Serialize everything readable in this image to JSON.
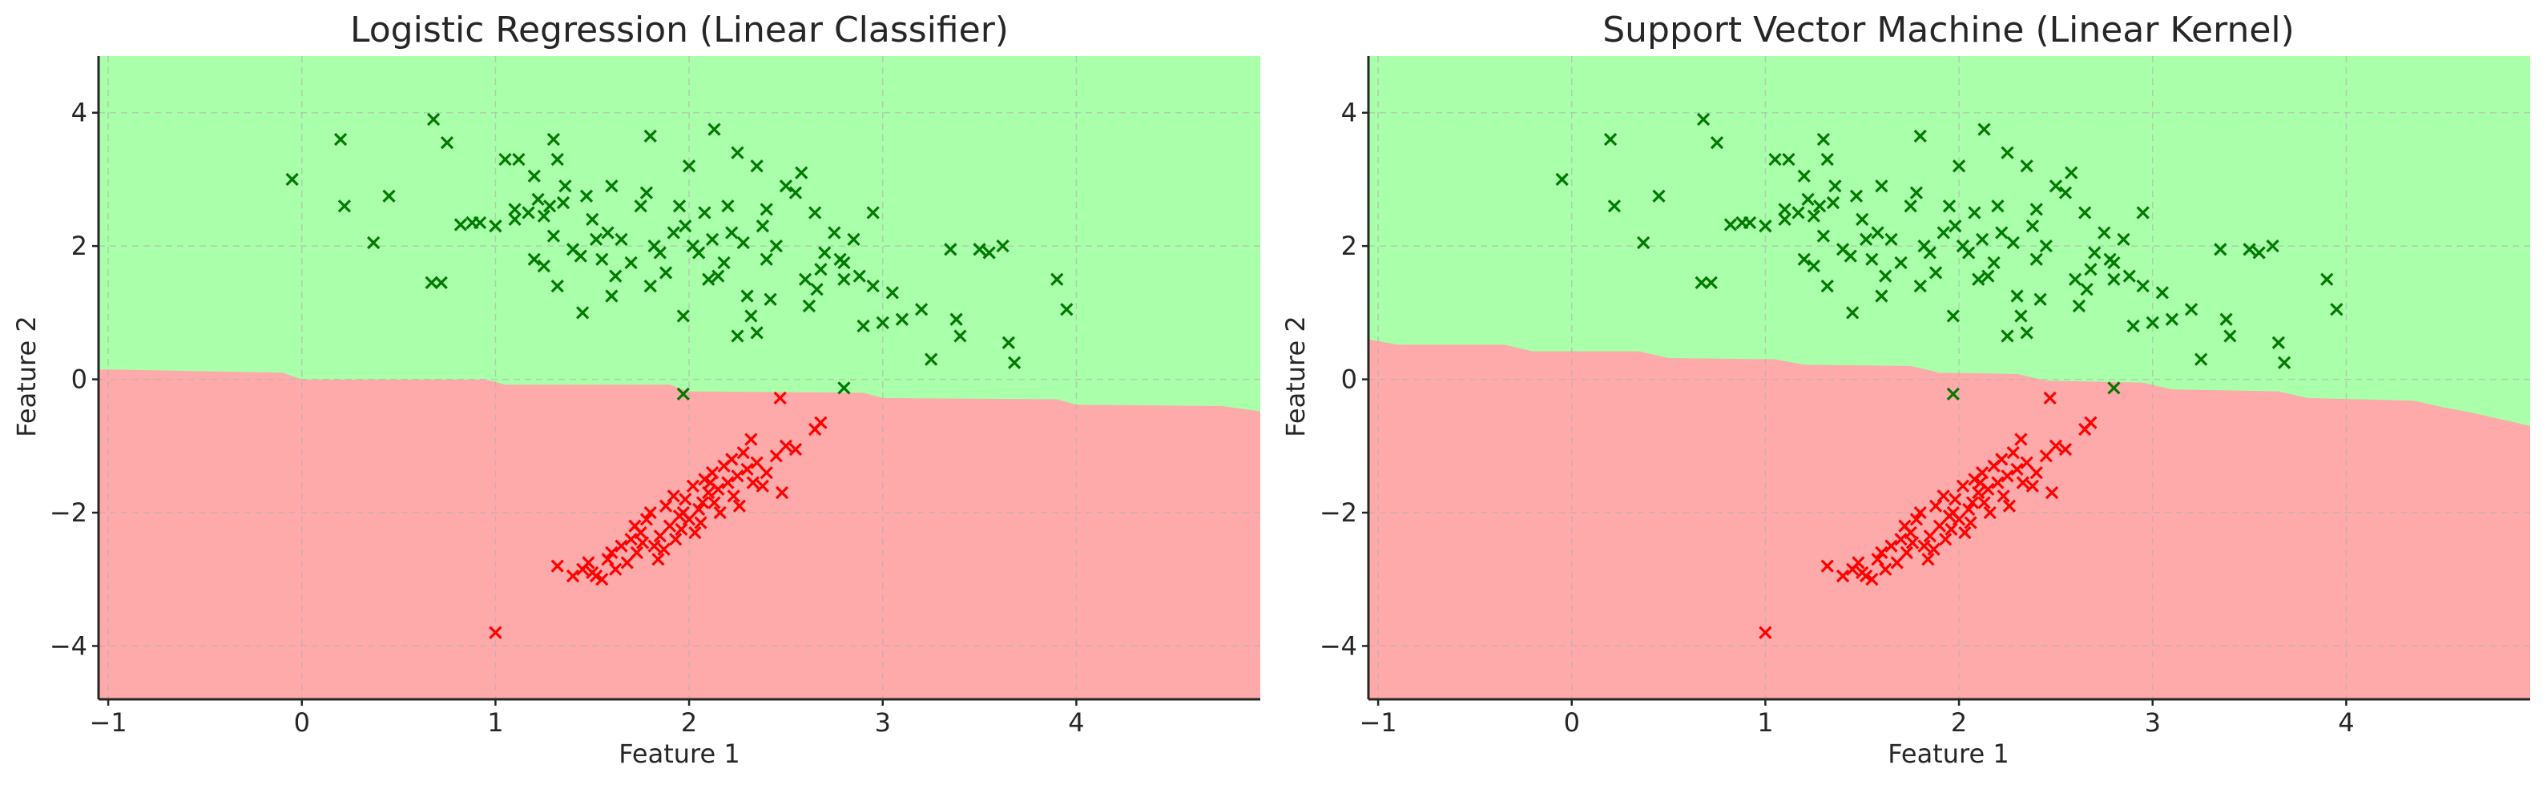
{
  "chart_data": [
    {
      "type": "scatter",
      "title": "Logistic Regression (Linear Classifier)",
      "xlabel": "Feature 1",
      "ylabel": "Feature 2",
      "xlim": [
        -1.05,
        4.95
      ],
      "ylim": [
        -4.8,
        4.85
      ],
      "xticks": [
        -1,
        0,
        1,
        2,
        3,
        4
      ],
      "xtick_labels": [
        "−1",
        "0",
        "1",
        "2",
        "3",
        "4"
      ],
      "yticks": [
        -4,
        -2,
        0,
        2,
        4
      ],
      "ytick_labels": [
        "−4",
        "−2",
        "0",
        "2",
        "4"
      ],
      "grid": true,
      "marker": "x",
      "region_colors": {
        "class_1": "#aaffaa",
        "class_0": "#ffaaaa"
      },
      "series_colors": {
        "class_1": "#007a00",
        "class_0": "#ff0000"
      },
      "decision_boundary": [
        [
          -1.05,
          0.15
        ],
        [
          -0.1,
          0.1
        ],
        [
          0.0,
          0.0
        ],
        [
          0.95,
          0.0
        ],
        [
          1.05,
          -0.08
        ],
        [
          1.9,
          -0.08
        ],
        [
          2.0,
          -0.18
        ],
        [
          2.9,
          -0.2
        ],
        [
          3.0,
          -0.28
        ],
        [
          3.9,
          -0.3
        ],
        [
          4.0,
          -0.38
        ],
        [
          4.75,
          -0.4
        ],
        [
          4.95,
          -0.48
        ]
      ]
    },
    {
      "type": "scatter",
      "title": "Support Vector Machine (Linear Kernel)",
      "xlabel": "Feature 1",
      "ylabel": "Feature 2",
      "xlim": [
        -1.05,
        4.95
      ],
      "ylim": [
        -4.8,
        4.85
      ],
      "xticks": [
        -1,
        0,
        1,
        2,
        3,
        4
      ],
      "xtick_labels": [
        "−1",
        "0",
        "1",
        "2",
        "3",
        "4"
      ],
      "yticks": [
        -4,
        -2,
        0,
        2,
        4
      ],
      "ytick_labels": [
        "−4",
        "−2",
        "0",
        "2",
        "4"
      ],
      "grid": true,
      "marker": "x",
      "region_colors": {
        "class_1": "#aaffaa",
        "class_0": "#ffaaaa"
      },
      "series_colors": {
        "class_1": "#007a00",
        "class_0": "#ff0000"
      },
      "decision_boundary": [
        [
          -1.05,
          0.6
        ],
        [
          -0.9,
          0.52
        ],
        [
          -0.35,
          0.52
        ],
        [
          -0.2,
          0.42
        ],
        [
          0.35,
          0.42
        ],
        [
          0.5,
          0.32
        ],
        [
          1.05,
          0.3
        ],
        [
          1.2,
          0.22
        ],
        [
          1.75,
          0.2
        ],
        [
          1.9,
          0.1
        ],
        [
          2.3,
          0.08
        ],
        [
          2.45,
          -0.02
        ],
        [
          2.95,
          -0.05
        ],
        [
          3.1,
          -0.15
        ],
        [
          3.65,
          -0.18
        ],
        [
          3.8,
          -0.28
        ],
        [
          4.35,
          -0.32
        ],
        [
          4.5,
          -0.42
        ],
        [
          4.65,
          -0.5
        ],
        [
          4.95,
          -0.7
        ]
      ]
    }
  ],
  "points": {
    "green": [
      [
        -0.05,
        3.0
      ],
      [
        0.2,
        3.6
      ],
      [
        0.22,
        2.6
      ],
      [
        0.37,
        2.05
      ],
      [
        0.45,
        2.75
      ],
      [
        0.68,
        3.9
      ],
      [
        0.75,
        3.55
      ],
      [
        0.67,
        1.45
      ],
      [
        0.72,
        1.45
      ],
      [
        0.82,
        2.32
      ],
      [
        0.88,
        2.35
      ],
      [
        1.0,
        2.3
      ],
      [
        1.05,
        3.3
      ],
      [
        1.1,
        2.4
      ],
      [
        1.12,
        3.3
      ],
      [
        1.17,
        2.5
      ],
      [
        1.2,
        3.05
      ],
      [
        1.22,
        2.7
      ],
      [
        1.25,
        2.45
      ],
      [
        1.28,
        2.6
      ],
      [
        1.3,
        3.6
      ],
      [
        1.32,
        3.3
      ],
      [
        1.35,
        2.65
      ],
      [
        1.2,
        1.8
      ],
      [
        1.25,
        1.7
      ],
      [
        1.3,
        2.15
      ],
      [
        1.32,
        1.4
      ],
      [
        1.4,
        1.95
      ],
      [
        1.45,
        1.0
      ],
      [
        1.47,
        2.75
      ],
      [
        1.52,
        2.1
      ],
      [
        1.55,
        1.8
      ],
      [
        1.58,
        2.2
      ],
      [
        1.6,
        1.25
      ],
      [
        1.62,
        1.55
      ],
      [
        1.7,
        1.75
      ],
      [
        1.75,
        2.6
      ],
      [
        1.78,
        2.8
      ],
      [
        1.8,
        1.4
      ],
      [
        1.82,
        2.0
      ],
      [
        1.85,
        1.9
      ],
      [
        1.88,
        1.6
      ],
      [
        1.8,
        3.65
      ],
      [
        1.95,
        2.6
      ],
      [
        1.98,
        2.3
      ],
      [
        2.0,
        3.2
      ],
      [
        2.02,
        2.0
      ],
      [
        2.05,
        1.9
      ],
      [
        2.08,
        2.5
      ],
      [
        1.97,
        0.95
      ],
      [
        2.1,
        1.5
      ],
      [
        2.12,
        2.1
      ],
      [
        2.13,
        3.75
      ],
      [
        2.15,
        1.55
      ],
      [
        2.18,
        1.75
      ],
      [
        2.2,
        2.6
      ],
      [
        2.22,
        2.2
      ],
      [
        2.25,
        3.4
      ],
      [
        2.25,
        0.65
      ],
      [
        2.3,
        1.25
      ],
      [
        2.32,
        0.95
      ],
      [
        2.35,
        3.2
      ],
      [
        2.35,
        0.7
      ],
      [
        2.38,
        2.3
      ],
      [
        2.4,
        1.8
      ],
      [
        2.45,
        2.0
      ],
      [
        2.5,
        2.9
      ],
      [
        2.55,
        2.8
      ],
      [
        2.58,
        3.1
      ],
      [
        2.6,
        1.5
      ],
      [
        2.62,
        1.1
      ],
      [
        2.65,
        2.5
      ],
      [
        2.68,
        1.65
      ],
      [
        2.7,
        1.9
      ],
      [
        2.75,
        2.2
      ],
      [
        2.78,
        1.8
      ],
      [
        2.8,
        1.5
      ],
      [
        2.85,
        2.1
      ],
      [
        2.88,
        1.55
      ],
      [
        2.9,
        0.8
      ],
      [
        2.95,
        1.4
      ],
      [
        2.95,
        2.5
      ],
      [
        3.0,
        0.85
      ],
      [
        3.05,
        1.3
      ],
      [
        3.1,
        0.9
      ],
      [
        3.2,
        1.05
      ],
      [
        3.25,
        0.3
      ],
      [
        3.35,
        1.95
      ],
      [
        3.4,
        0.65
      ],
      [
        3.5,
        1.95
      ],
      [
        3.55,
        1.9
      ],
      [
        3.62,
        2.0
      ],
      [
        3.65,
        0.55
      ],
      [
        3.68,
        0.25
      ],
      [
        3.9,
        1.5
      ],
      [
        3.95,
        1.05
      ],
      [
        0.92,
        2.35
      ],
      [
        1.36,
        2.9
      ],
      [
        1.5,
        2.4
      ],
      [
        1.65,
        2.1
      ],
      [
        2.28,
        2.05
      ],
      [
        2.42,
        1.2
      ],
      [
        3.38,
        0.9
      ],
      [
        2.8,
        1.75
      ],
      [
        1.1,
        2.55
      ],
      [
        1.6,
        2.9
      ],
      [
        1.92,
        2.2
      ],
      [
        2.4,
        2.55
      ],
      [
        1.44,
        1.85
      ],
      [
        2.66,
        1.35
      ]
    ],
    "green_outliers": [
      [
        1.97,
        -0.22
      ],
      [
        2.8,
        -0.13
      ]
    ],
    "red": [
      [
        1.0,
        -3.8
      ],
      [
        1.32,
        -2.8
      ],
      [
        1.45,
        -2.85
      ],
      [
        1.5,
        -2.9
      ],
      [
        1.52,
        -2.95
      ],
      [
        1.55,
        -3.0
      ],
      [
        1.58,
        -2.7
      ],
      [
        1.6,
        -2.6
      ],
      [
        1.65,
        -2.5
      ],
      [
        1.7,
        -2.4
      ],
      [
        1.72,
        -2.2
      ],
      [
        1.75,
        -2.3
      ],
      [
        1.78,
        -2.1
      ],
      [
        1.8,
        -2.0
      ],
      [
        1.82,
        -2.5
      ],
      [
        1.85,
        -2.35
      ],
      [
        1.88,
        -1.9
      ],
      [
        1.9,
        -2.2
      ],
      [
        1.92,
        -1.75
      ],
      [
        1.95,
        -2.05
      ],
      [
        1.98,
        -1.8
      ],
      [
        2.0,
        -2.1
      ],
      [
        2.02,
        -1.6
      ],
      [
        2.05,
        -1.95
      ],
      [
        2.08,
        -1.5
      ],
      [
        2.1,
        -1.7
      ],
      [
        2.12,
        -1.4
      ],
      [
        2.15,
        -1.65
      ],
      [
        2.18,
        -1.3
      ],
      [
        2.2,
        -1.55
      ],
      [
        2.22,
        -1.2
      ],
      [
        2.25,
        -1.45
      ],
      [
        2.28,
        -1.1
      ],
      [
        2.3,
        -1.35
      ],
      [
        2.32,
        -0.9
      ],
      [
        2.35,
        -1.25
      ],
      [
        2.38,
        -1.6
      ],
      [
        2.4,
        -1.4
      ],
      [
        2.45,
        -1.15
      ],
      [
        2.48,
        -1.7
      ],
      [
        2.5,
        -1.0
      ],
      [
        2.55,
        -1.05
      ],
      [
        2.65,
        -0.75
      ],
      [
        2.68,
        -0.65
      ],
      [
        1.68,
        -2.75
      ],
      [
        1.73,
        -2.6
      ],
      [
        1.76,
        -2.45
      ],
      [
        1.84,
        -2.7
      ],
      [
        1.87,
        -2.55
      ],
      [
        1.93,
        -2.4
      ],
      [
        1.96,
        -2.25
      ],
      [
        2.03,
        -2.3
      ],
      [
        2.06,
        -2.15
      ],
      [
        2.13,
        -1.85
      ],
      [
        2.16,
        -2.0
      ],
      [
        2.23,
        -1.75
      ],
      [
        2.26,
        -1.9
      ],
      [
        2.33,
        -1.55
      ],
      [
        1.62,
        -2.85
      ],
      [
        1.4,
        -2.95
      ],
      [
        1.48,
        -2.75
      ],
      [
        2.07,
        -1.85
      ],
      [
        1.97,
        -2.0
      ],
      [
        2.11,
        -1.55
      ],
      [
        2.47,
        -0.28
      ]
    ]
  }
}
